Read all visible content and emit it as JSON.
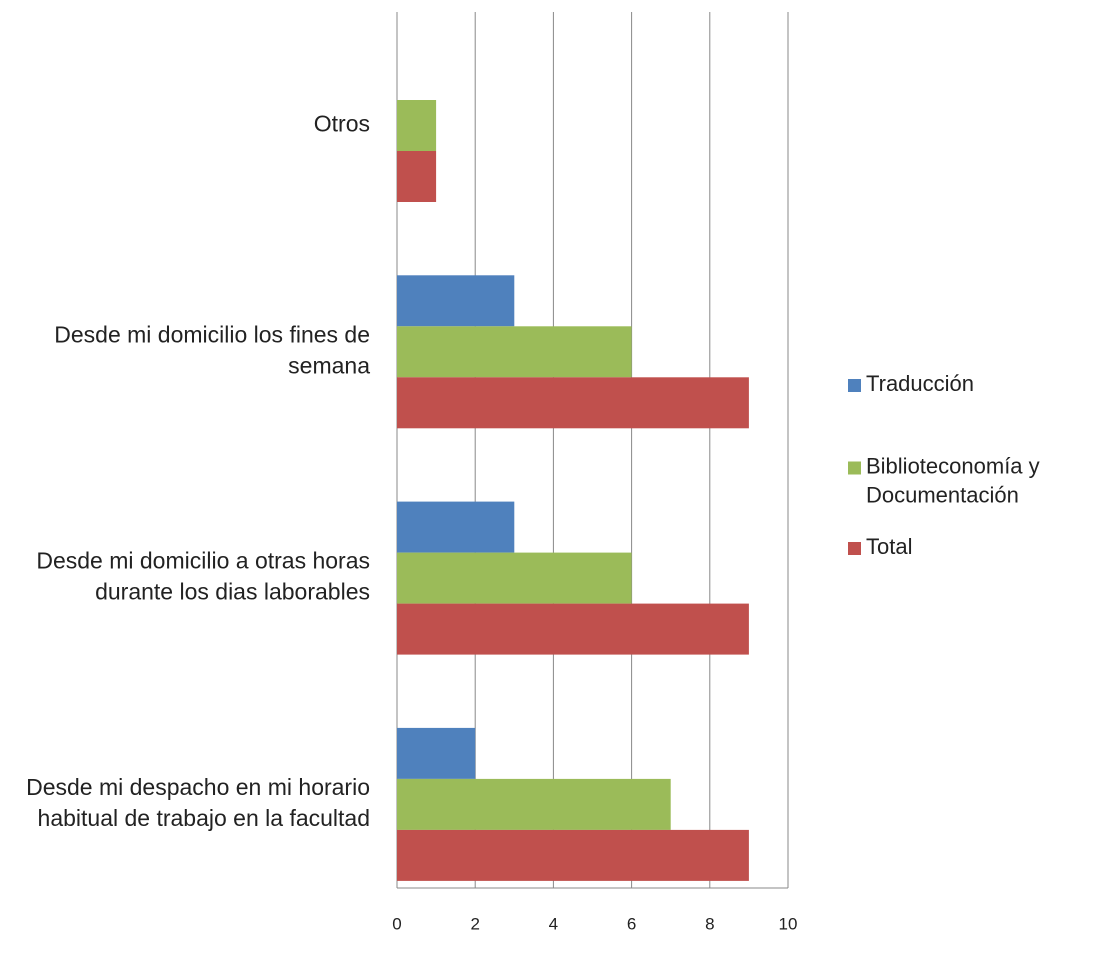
{
  "chart_data": {
    "type": "hbar",
    "categories": [
      "Desde mi despacho en mi horario habitual de trabajo en la facultad",
      "Desde mi domicilio a otras horas durante los dias laborables",
      "Desde mi domicilio los fines de semana",
      "Otros"
    ],
    "series": [
      {
        "name": "Traducción",
        "color": "#4f81bd",
        "values": [
          2,
          3,
          3,
          0
        ]
      },
      {
        "name": "Biblioteconomía y Documentación",
        "color": "#9bbb59",
        "values": [
          7,
          6,
          6,
          1
        ]
      },
      {
        "name": "Total",
        "color": "#c0504d",
        "values": [
          9,
          9,
          9,
          1
        ]
      }
    ],
    "xlim": [
      0,
      10
    ],
    "xticks": [
      0,
      2,
      4,
      6,
      8,
      10
    ],
    "grid": true,
    "legend": "right"
  }
}
